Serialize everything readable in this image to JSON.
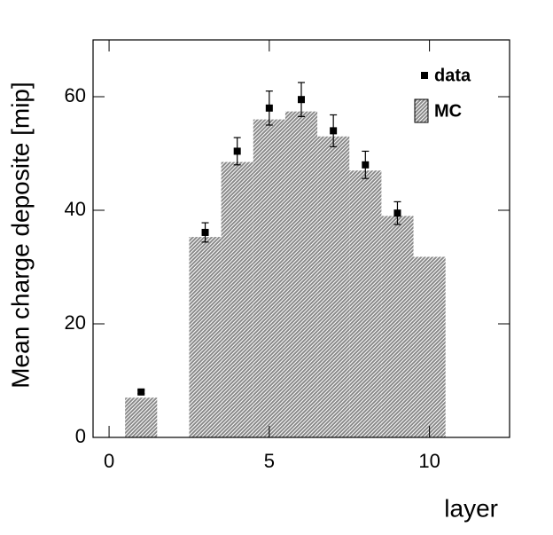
{
  "chart_data": {
    "type": "histogram",
    "xlabel": "layer",
    "ylabel": "Mean charge deposite [mip]",
    "xlim": [
      -0.5,
      12.5
    ],
    "ylim": [
      0,
      70
    ],
    "xticks": [
      0,
      5,
      10
    ],
    "yticks": [
      0,
      20,
      40,
      60
    ],
    "legend": "top-right",
    "bins": [
      0.5,
      1.5,
      2.5,
      3.5,
      4.5,
      5.5,
      6.5,
      7.5,
      8.5,
      9.5,
      10.5
    ],
    "series": [
      {
        "name": "MC",
        "color": "#8a8a8a",
        "values": [
          7,
          0,
          35.3,
          48.5,
          56,
          57.4,
          53,
          47,
          39,
          31.8
        ]
      },
      {
        "name": "data",
        "color": "#000000",
        "x": [
          1,
          3,
          4,
          5,
          6,
          7,
          8,
          9
        ],
        "values": [
          8,
          36.1,
          50.4,
          58,
          59.5,
          54,
          48,
          39.5
        ],
        "errors": [
          0.3,
          1.7,
          2.4,
          3,
          3,
          2.8,
          2.4,
          2
        ]
      }
    ]
  }
}
